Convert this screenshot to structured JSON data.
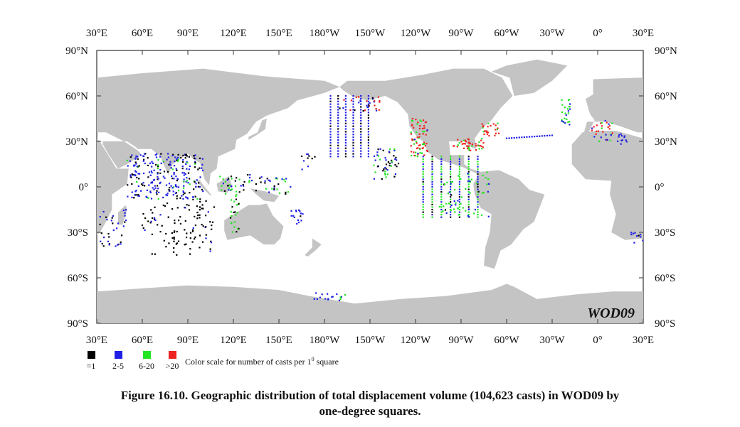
{
  "map": {
    "wod_tag": "WOD09",
    "top_lon_labels": [
      "30°E",
      "60°E",
      "90°E",
      "120°E",
      "150°E",
      "180°W",
      "150°W",
      "120°W",
      "90°W",
      "60°W",
      "30°W",
      "0°",
      "30°E"
    ],
    "bottom_lon_labels": [
      "30°E",
      "60°E",
      "90°E",
      "120°E",
      "150°E",
      "180°W",
      "150°W",
      "120°W",
      "90°W",
      "60°W",
      "30°W",
      "0°",
      "30°E"
    ],
    "left_lat_labels": [
      "90°N",
      "60°N",
      "30°N",
      "0°",
      "30°S",
      "60°S",
      "90°S"
    ],
    "right_lat_labels": [
      "90°N",
      "60°N",
      "30°N",
      "0°",
      "30°S",
      "60°S",
      "90°S"
    ],
    "lon_range": [
      30,
      390
    ],
    "lat_range": [
      -90,
      90
    ],
    "land_color": "#c4c4c4",
    "ocean_color": "#ffffff"
  },
  "legend": {
    "items": [
      {
        "label": "=1",
        "color": "#000000"
      },
      {
        "label": "2-5",
        "color": "#1f1fe6"
      },
      {
        "label": "6-20",
        "color": "#22e622"
      },
      {
        "label": ">20",
        "color": "#ee2222"
      }
    ],
    "caption_prefix": "Color scale for number of casts per 1",
    "caption_sup": "0",
    "caption_suffix": " square"
  },
  "caption": {
    "line1": "Figure 16.10. Geographic distribution of total displacement volume (104,623 casts) in WOD09 by",
    "line2": "one-degree squares."
  }
}
